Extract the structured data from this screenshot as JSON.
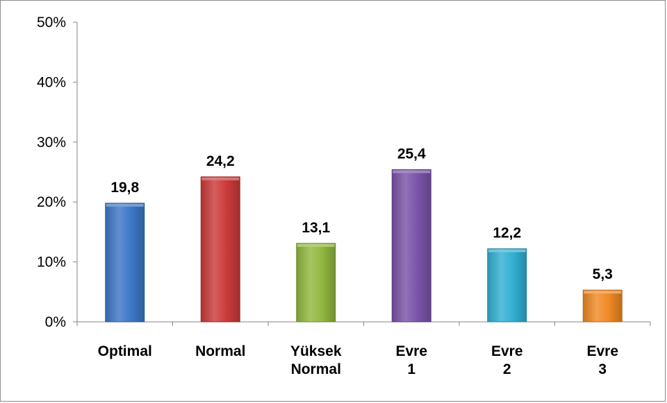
{
  "chart_data": {
    "type": "bar",
    "categories": [
      "Optimal",
      "Normal",
      "Yüksek Normal",
      "Evre 1",
      "Evre 2",
      "Evre 3"
    ],
    "values": [
      19.8,
      24.2,
      13.1,
      25.4,
      12.2,
      5.3
    ],
    "data_labels": [
      "19,8",
      "24,2",
      "13,1",
      "25,4",
      "12,2",
      "5,3"
    ],
    "yticks": [
      "0%",
      "10%",
      "20%",
      "30%",
      "40%",
      "50%"
    ],
    "ylim": [
      0,
      50
    ],
    "grid": false,
    "legend": "none",
    "title": "",
    "xlabel": "",
    "ylabel": "",
    "colors": [
      "#3d78c8",
      "#cc3b3b",
      "#92b83e",
      "#7b54a8",
      "#32b0d3",
      "#f08a26"
    ]
  }
}
